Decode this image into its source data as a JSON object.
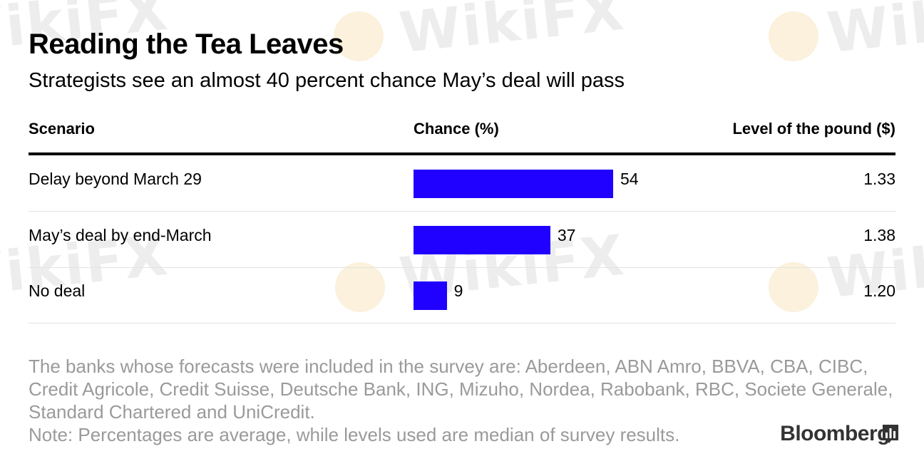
{
  "header": {
    "title": "Reading the Tea Leaves",
    "subtitle": "Strategists see an almost 40 percent chance May’s deal will pass"
  },
  "columns": {
    "scenario": "Scenario",
    "chance": "Chance (%)",
    "level": "Level of the pound ($)"
  },
  "chart_data": {
    "type": "bar",
    "categories": [
      "Delay beyond March 29",
      "May’s deal by end-March",
      "No deal"
    ],
    "values": [
      54,
      37,
      9
    ],
    "levels": [
      "1.33",
      "1.38",
      "1.20"
    ],
    "bar_color": "#2000ff",
    "xlim": [
      0,
      54
    ]
  },
  "footer": {
    "note1": "The banks whose forecasts were included in the survey are: Aberdeen, ABN Amro, BBVA, CBA, CIBC, Credit Agricole, Credit Suisse, Deutsche Bank, ING, Mizuho, Nordea, Rabobank, RBC, Societe Generale, Standard Chartered and UniCredit.",
    "note2": "Note: Percentages are average, while levels used are median of survey results.",
    "brand": "Bloomberg"
  },
  "watermark": {
    "text": "WikiFX"
  }
}
